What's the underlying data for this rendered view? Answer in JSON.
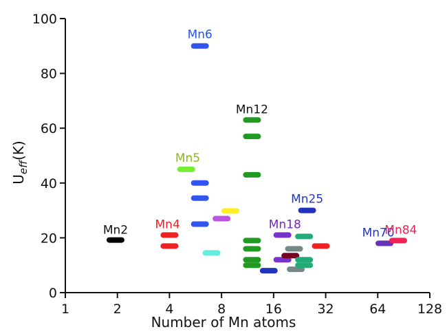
{
  "chart_data": {
    "type": "scatter",
    "xlabel": "Number of Mn atoms",
    "ylabel_main": "U",
    "ylabel_sub": "eff",
    "ylabel_unit": "(K)",
    "x_scale": "log2",
    "xlim": [
      1,
      128
    ],
    "ylim": [
      0,
      100
    ],
    "x_ticks": [
      1,
      2,
      4,
      8,
      16,
      32,
      64,
      128
    ],
    "x_tick_labels": [
      "1",
      "2",
      "4",
      "8",
      "16",
      "32",
      "64",
      "128"
    ],
    "y_ticks": [
      0,
      20,
      40,
      60,
      80,
      100
    ],
    "y_tick_labels": [
      "0",
      "20",
      "40",
      "60",
      "80",
      "100"
    ],
    "grid": false,
    "points": [
      {
        "x": 1.95,
        "y": 19.2,
        "color": "#000000"
      },
      {
        "x": 4.0,
        "y": 21.0,
        "color": "#ee2222"
      },
      {
        "x": 4.0,
        "y": 17.0,
        "color": "#ee2222"
      },
      {
        "x": 5.0,
        "y": 45.0,
        "color": "#77ee33"
      },
      {
        "x": 6.0,
        "y": 90.0,
        "color": "#3355ee"
      },
      {
        "x": 6.0,
        "y": 40.0,
        "color": "#3355ee"
      },
      {
        "x": 6.0,
        "y": 34.5,
        "color": "#3355ee"
      },
      {
        "x": 6.0,
        "y": 25.0,
        "color": "#3355ee"
      },
      {
        "x": 7.0,
        "y": 14.5,
        "color": "#66eedd"
      },
      {
        "x": 8.0,
        "y": 27.0,
        "color": "#bb55dd"
      },
      {
        "x": 9.0,
        "y": 29.8,
        "color": "#ffee22"
      },
      {
        "x": 12.0,
        "y": 63.0,
        "color": "#229922"
      },
      {
        "x": 12.0,
        "y": 57.0,
        "color": "#229922"
      },
      {
        "x": 12.0,
        "y": 43.0,
        "color": "#229922"
      },
      {
        "x": 12.0,
        "y": 19.0,
        "color": "#229922"
      },
      {
        "x": 12.0,
        "y": 16.0,
        "color": "#229922"
      },
      {
        "x": 12.0,
        "y": 12.0,
        "color": "#229922"
      },
      {
        "x": 12.0,
        "y": 10.0,
        "color": "#229922"
      },
      {
        "x": 15.0,
        "y": 8.0,
        "color": "#2233bb"
      },
      {
        "x": 18.0,
        "y": 21.0,
        "color": "#7733cc"
      },
      {
        "x": 18.0,
        "y": 12.0,
        "color": "#7733cc"
      },
      {
        "x": 20.0,
        "y": 13.5,
        "color": "#770022"
      },
      {
        "x": 21.0,
        "y": 16.0,
        "color": "#778888"
      },
      {
        "x": 21.5,
        "y": 8.5,
        "color": "#778888"
      },
      {
        "x": 24.0,
        "y": 20.5,
        "color": "#22aa77"
      },
      {
        "x": 24.0,
        "y": 12.0,
        "color": "#22aa77"
      },
      {
        "x": 24.0,
        "y": 10.0,
        "color": "#22aa77"
      },
      {
        "x": 25.0,
        "y": 30.0,
        "color": "#2233bb"
      },
      {
        "x": 30.0,
        "y": 17.0,
        "color": "#ee2222"
      },
      {
        "x": 70.0,
        "y": 18.0,
        "color": "#6633bb"
      },
      {
        "x": 84.0,
        "y": 19.0,
        "color": "#ee2255"
      }
    ],
    "annotations": [
      {
        "text": "Mn2",
        "x": 1.95,
        "y": 21.5,
        "color": "#111111"
      },
      {
        "text": "Mn4",
        "x": 3.9,
        "y": 23.5,
        "color": "#ee2222"
      },
      {
        "text": "Mn5",
        "x": 5.1,
        "y": 47.8,
        "color": "#88bb11"
      },
      {
        "text": "Mn6",
        "x": 6.0,
        "y": 92.8,
        "color": "#2255ee"
      },
      {
        "text": "Mn12",
        "x": 12.0,
        "y": 65.5,
        "color": "#111111"
      },
      {
        "text": "Mn18",
        "x": 18.6,
        "y": 23.5,
        "color": "#7722cc"
      },
      {
        "text": "Mn25",
        "x": 25.0,
        "y": 32.8,
        "color": "#2233cc"
      },
      {
        "text": "Mn70",
        "x": 64.5,
        "y": 20.5,
        "color": "#2233cc"
      },
      {
        "text": "Mn84",
        "x": 87.0,
        "y": 21.5,
        "color": "#ee2255"
      }
    ]
  }
}
